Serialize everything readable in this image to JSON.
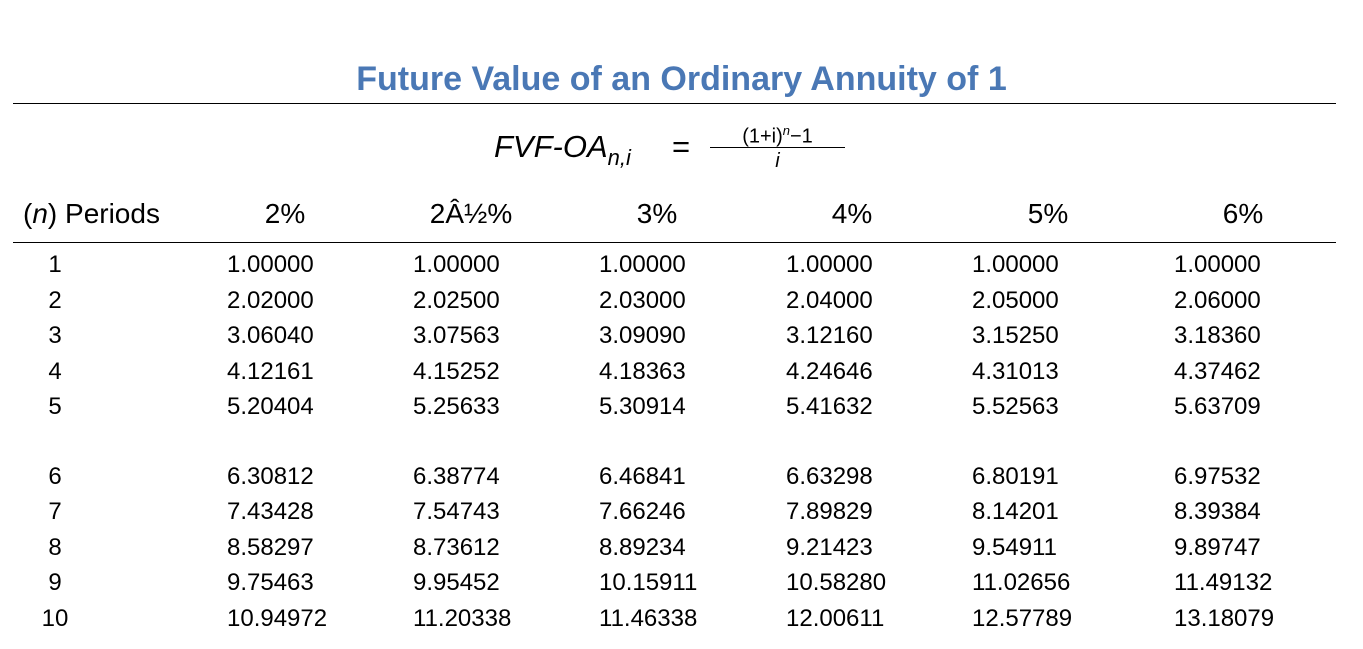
{
  "title": "Future Value of an Ordinary Annuity of 1",
  "formula": {
    "lhs": "FVF-OA",
    "subscript": "n,i",
    "equals": "=",
    "numerator_base": "(1+i)",
    "numerator_exp": "n",
    "numerator_tail": "−1",
    "denominator": "i"
  },
  "header": {
    "periods_n": "n",
    "periods_label": "Periods",
    "rates": [
      "2%",
      "2Â½%",
      "3%",
      "4%",
      "5%",
      "6%"
    ]
  },
  "rows": [
    {
      "n": "1",
      "values": [
        "1.00000",
        "1.00000",
        "1.00000",
        "1.00000",
        "1.00000",
        "1.00000"
      ]
    },
    {
      "n": "2",
      "values": [
        "2.02000",
        "2.02500",
        "2.03000",
        "2.04000",
        "2.05000",
        "2.06000"
      ]
    },
    {
      "n": "3",
      "values": [
        "3.06040",
        "3.07563",
        "3.09090",
        "3.12160",
        "3.15250",
        "3.18360"
      ]
    },
    {
      "n": "4",
      "values": [
        "4.12161",
        "4.15252",
        "4.18363",
        "4.24646",
        "4.31013",
        "4.37462"
      ]
    },
    {
      "n": "5",
      "values": [
        "5.20404",
        "5.25633",
        "5.30914",
        "5.41632",
        "5.52563",
        "5.63709"
      ]
    },
    {
      "n": "6",
      "values": [
        "6.30812",
        "6.38774",
        "6.46841",
        "6.63298",
        "6.80191",
        "6.97532"
      ]
    },
    {
      "n": "7",
      "values": [
        "7.43428",
        "7.54743",
        "7.66246",
        "7.89829",
        "8.14201",
        "8.39384"
      ]
    },
    {
      "n": "8",
      "values": [
        "8.58297",
        "8.73612",
        "8.89234",
        "9.21423",
        "9.54911",
        "9.89747"
      ]
    },
    {
      "n": "9",
      "values": [
        "9.75463",
        "9.95452",
        "10.15911",
        "10.58280",
        "11.02656",
        "11.49132"
      ]
    },
    {
      "n": "10",
      "values": [
        "10.94972",
        "11.20338",
        "11.46338",
        "12.00611",
        "12.57789",
        "13.18079"
      ]
    }
  ],
  "colors": {
    "title": "#4a78b5",
    "text": "#000000",
    "background": "#ffffff"
  }
}
